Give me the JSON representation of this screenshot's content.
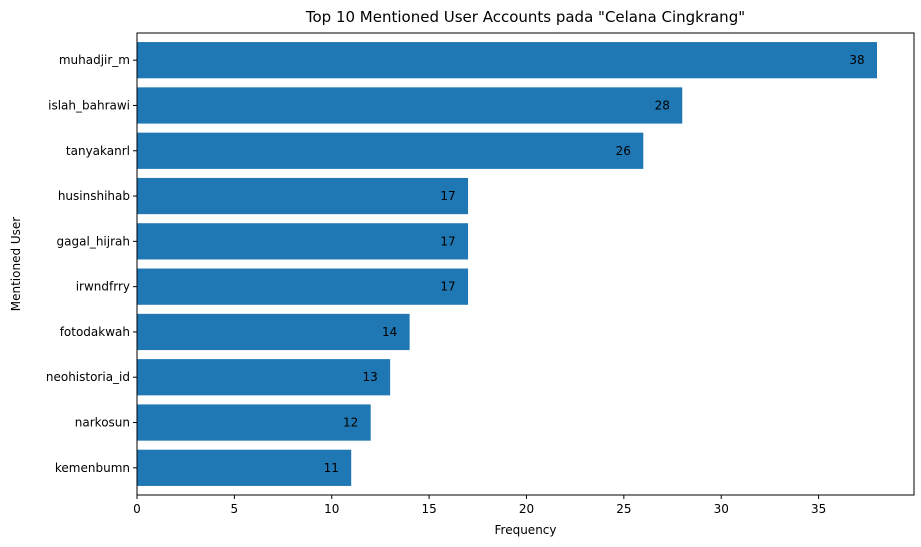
{
  "chart_data": {
    "type": "bar",
    "orientation": "horizontal",
    "title": "Top 10 Mentioned User Accounts pada \"Celana Cingkrang\"",
    "xlabel": "Frequency",
    "ylabel": "Mentioned User",
    "categories": [
      "muhadjir_m",
      "islah_bahrawi",
      "tanyakanrl",
      "husinshihab",
      "gagal_hijrah",
      "irwndfrry",
      "fotodakwah",
      "neohistoria_id",
      "narkosun",
      "kemenbumn"
    ],
    "values": [
      38,
      28,
      26,
      17,
      17,
      17,
      14,
      13,
      12,
      11
    ],
    "xlim": [
      0,
      39.9
    ],
    "xticks": [
      0,
      5,
      10,
      15,
      20,
      25,
      30,
      35
    ],
    "bar_color": "#1f77b4",
    "grid": false,
    "data_labels": true
  }
}
